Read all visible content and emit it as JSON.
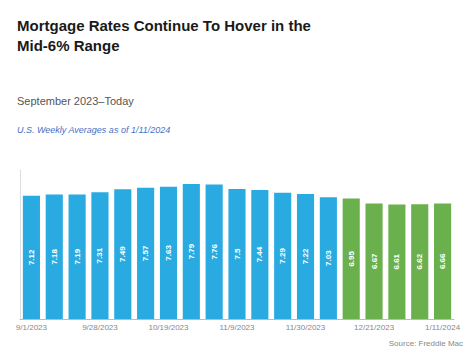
{
  "chart_data": {
    "type": "bar",
    "title": "Mortgage Rates Continue To Hover in the\nMid-6% Range",
    "subtitle": "September 2023–Today",
    "annotations": [
      "U.S. Weekly Averages as of 1/11/2024",
      "Source: Freddie Mac"
    ],
    "categories": [
      "9/1/2023",
      null,
      null,
      "9/28/2023",
      null,
      null,
      "10/19/2023",
      null,
      null,
      "11/9/2023",
      null,
      null,
      "11/30/2023",
      null,
      null,
      "12/21/2023",
      null,
      null,
      "1/11/2024"
    ],
    "values": [
      7.12,
      7.18,
      7.19,
      7.31,
      7.49,
      7.57,
      7.63,
      7.79,
      7.76,
      7.5,
      7.44,
      7.29,
      7.22,
      7.03,
      6.95,
      6.67,
      6.61,
      6.62,
      6.66
    ],
    "colors": [
      "#29abe2",
      "#29abe2",
      "#29abe2",
      "#29abe2",
      "#29abe2",
      "#29abe2",
      "#29abe2",
      "#29abe2",
      "#29abe2",
      "#29abe2",
      "#29abe2",
      "#29abe2",
      "#29abe2",
      "#29abe2",
      "#6ab04c",
      "#6ab04c",
      "#6ab04c",
      "#6ab04c",
      "#6ab04c"
    ],
    "ylim": [
      0,
      8.6
    ],
    "data_labels": true,
    "tick_labels": "x",
    "grid": false
  }
}
